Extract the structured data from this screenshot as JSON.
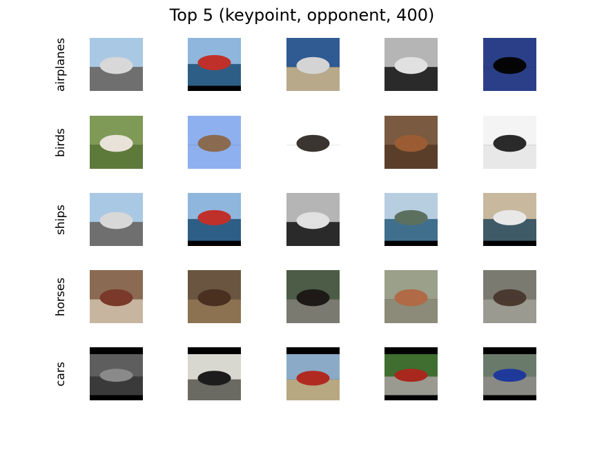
{
  "title": "Top 5 (keypoint, opponent, 400)",
  "rows": [
    {
      "label": "airplanes",
      "images": [
        {
          "name": "airplane-on-tarmac-image",
          "sky": "#a9c8e4",
          "ground": "#6f6f6f",
          "fg": "#d8d8d8",
          "frame": "none"
        },
        {
          "name": "red-ship-image",
          "sky": "#8fb6dc",
          "ground": "#2d5f86",
          "fg": "#c0302a",
          "frame": "bottom"
        },
        {
          "name": "airplane-desert-image",
          "sky": "#2f5a92",
          "ground": "#b8a98a",
          "fg": "#d4d4d4",
          "frame": "none"
        },
        {
          "name": "grayscale-ship-image",
          "sky": "#b5b5b5",
          "ground": "#2a2a2a",
          "fg": "#e0e0e0",
          "frame": "none"
        },
        {
          "name": "airplane-silhouette-image",
          "sky": "#2b3f88",
          "ground": "#2b3f88",
          "fg": "#050505",
          "frame": "none"
        }
      ]
    },
    {
      "label": "birds",
      "images": [
        {
          "name": "horse-in-field-image",
          "sky": "#7e9a56",
          "ground": "#5e7a3a",
          "fg": "#e9e2d8",
          "frame": "none"
        },
        {
          "name": "bird-in-flight-image",
          "sky": "#8fb0ee",
          "ground": "#8fb0ee",
          "fg": "#8a6b52",
          "frame": "none"
        },
        {
          "name": "bird-on-wire-image",
          "sky": "#ffffff",
          "ground": "#ffffff",
          "fg": "#3b3530",
          "frame": "none"
        },
        {
          "name": "rodeo-horse-image",
          "sky": "#7a5a40",
          "ground": "#5a3e2a",
          "fg": "#9b5c34",
          "frame": "none"
        },
        {
          "name": "airplane-white-sky-image",
          "sky": "#f4f4f4",
          "ground": "#e8e8e8",
          "fg": "#2a2a2a",
          "frame": "none"
        }
      ]
    },
    {
      "label": "ships",
      "images": [
        {
          "name": "airplane-on-tarmac-image",
          "sky": "#a9c8e4",
          "ground": "#6f6f6f",
          "fg": "#d8d8d8",
          "frame": "none"
        },
        {
          "name": "red-ship-image",
          "sky": "#8fb6dc",
          "ground": "#2d5f86",
          "fg": "#c0302a",
          "frame": "bottom"
        },
        {
          "name": "grayscale-ship-image",
          "sky": "#b5b5b5",
          "ground": "#2a2a2a",
          "fg": "#e0e0e0",
          "frame": "none"
        },
        {
          "name": "cargo-ship-image",
          "sky": "#b7cde0",
          "ground": "#3f6f8c",
          "fg": "#5c7060",
          "frame": "bottom"
        },
        {
          "name": "ferry-ship-image",
          "sky": "#c8b89e",
          "ground": "#3e5a66",
          "fg": "#e8e8e8",
          "frame": "bottom"
        }
      ]
    },
    {
      "label": "horses",
      "images": [
        {
          "name": "horse-parade-image",
          "sky": "#8a6a52",
          "ground": "#c8b5a0",
          "fg": "#7a3a2a",
          "frame": "none"
        },
        {
          "name": "horse-herd-image",
          "sky": "#6a5640",
          "ground": "#8c7250",
          "fg": "#4a3020",
          "frame": "none"
        },
        {
          "name": "horse-carriage-image",
          "sky": "#4c5c46",
          "ground": "#7a7a70",
          "fg": "#1e1a18",
          "frame": "none"
        },
        {
          "name": "bird-in-tree-image",
          "sky": "#9aa08a",
          "ground": "#8c8a78",
          "fg": "#b06a46",
          "frame": "none"
        },
        {
          "name": "horse-cart-image",
          "sky": "#7a7a70",
          "ground": "#9a9a90",
          "fg": "#4a3a30",
          "frame": "none"
        }
      ]
    },
    {
      "label": "cars",
      "images": [
        {
          "name": "gray-concept-car-image",
          "sky": "#5e5e5e",
          "ground": "#3a3a3a",
          "fg": "#8a8a8a",
          "frame": "both"
        },
        {
          "name": "black-sports-car-image",
          "sky": "#d8d8d0",
          "ground": "#6a6a62",
          "fg": "#1c1c1c",
          "frame": "top"
        },
        {
          "name": "red-biplane-image",
          "sky": "#8aaac8",
          "ground": "#b8a882",
          "fg": "#b02a22",
          "frame": "top"
        },
        {
          "name": "red-classic-car-image",
          "sky": "#3f6e30",
          "ground": "#9a9a90",
          "fg": "#a8281e",
          "frame": "both"
        },
        {
          "name": "blue-coupe-image",
          "sky": "#6a7a6a",
          "ground": "#8a8a84",
          "fg": "#1e3a9a",
          "frame": "both"
        }
      ]
    }
  ]
}
